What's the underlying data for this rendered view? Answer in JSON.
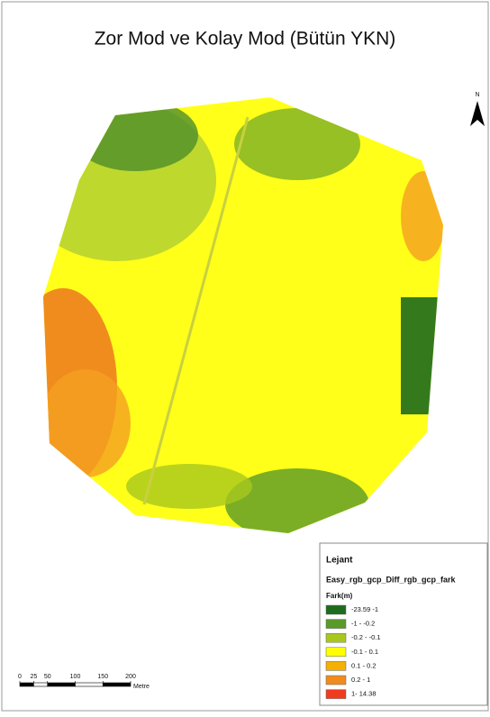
{
  "title": "Zor Mod ve Kolay Mod (Bütün YKN)",
  "north_label": "N",
  "legend": {
    "title": "Lejant",
    "layer": "Easy_rgb_gcp_Diff_rgb_gcp_fark",
    "field": "Fark(m)",
    "items": [
      {
        "label": "-23.59 -1",
        "color": "#1e6b1e"
      },
      {
        "label": "-1 - -0.2",
        "color": "#5a9a28"
      },
      {
        "label": "-0.2 - -0.1",
        "color": "#a8c81e"
      },
      {
        "label": "-0.1 - 0.1",
        "color": "#ffff00"
      },
      {
        "label": "0.1 - 0.2",
        "color": "#f5b000"
      },
      {
        "label": "0.2 - 1",
        "color": "#f08c1e"
      },
      {
        "label": "1- 14.38",
        "color": "#f03c1e"
      }
    ]
  },
  "scale_bar": {
    "ticks": [
      0,
      25,
      50,
      100,
      150,
      200
    ],
    "unit": "Metre"
  }
}
